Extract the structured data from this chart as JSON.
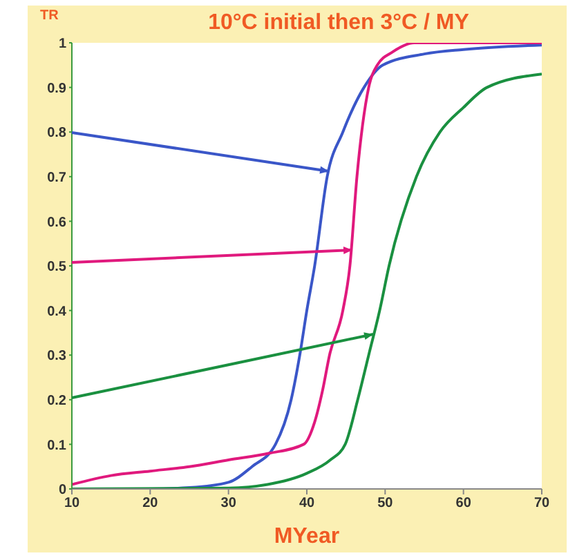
{
  "chart_data": {
    "type": "line",
    "title": "10°C initial then 3°C / MY",
    "xlabel": "MYear",
    "ylabel": "TR",
    "xlim": [
      10,
      70
    ],
    "xticks": [
      10,
      20,
      30,
      40,
      50,
      60,
      70
    ],
    "ylim": [
      0,
      1
    ],
    "yticks": [
      0,
      0.1,
      0.2,
      0.3,
      0.4,
      0.5,
      0.6,
      0.7,
      0.8,
      0.9,
      1
    ],
    "series": [
      {
        "color": "#3a56c8",
        "x": [
          10,
          20,
          25,
          30,
          33,
          36,
          38,
          39.1,
          40,
          41,
          42.6,
          44.6,
          47.3,
          49.7,
          55,
          60,
          70
        ],
        "values": [
          0,
          0,
          0.003,
          0.015,
          0.05,
          0.1,
          0.2,
          0.3,
          0.4,
          0.5,
          0.7,
          0.8,
          0.9,
          0.95,
          0.975,
          0.985,
          0.995
        ]
      },
      {
        "color": "#e0197d",
        "x": [
          10,
          15,
          20,
          25,
          30,
          35.2,
          39.6,
          41,
          42,
          42.9,
          44.6,
          45.5,
          46.4,
          47.9,
          49,
          51,
          53.7,
          70
        ],
        "values": [
          0.01,
          0.03,
          0.04,
          0.05,
          0.065,
          0.08,
          0.1,
          0.15,
          0.22,
          0.3,
          0.4,
          0.5,
          0.7,
          0.9,
          0.95,
          0.98,
          1,
          1
        ]
      },
      {
        "color": "#1a9040",
        "x": [
          10,
          30,
          35,
          40,
          43,
          44.9,
          46.5,
          47.9,
          49.3,
          50.5,
          54,
          57,
          60,
          63,
          70
        ],
        "values": [
          0,
          0.002,
          0.01,
          0.035,
          0.065,
          0.1,
          0.2,
          0.3,
          0.4,
          0.5,
          0.7,
          0.8,
          0.855,
          0.9,
          0.93
        ]
      }
    ]
  }
}
